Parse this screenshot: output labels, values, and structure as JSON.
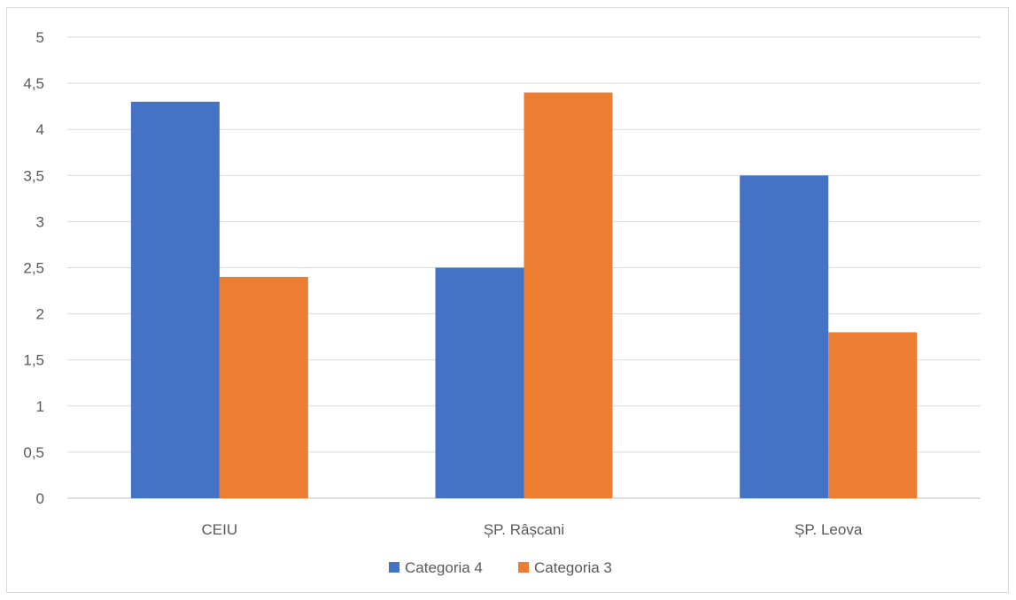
{
  "chart_data": {
    "type": "bar",
    "categories": [
      "CEIU",
      "ȘP. Râșcani",
      "ȘP. Leova"
    ],
    "series": [
      {
        "name": "Categoria 4",
        "values": [
          4.3,
          2.5,
          3.5
        ],
        "color": "#4472c4"
      },
      {
        "name": "Categoria 3",
        "values": [
          2.4,
          4.4,
          1.8
        ],
        "color": "#ed7d31"
      }
    ],
    "ylim": [
      0,
      5
    ],
    "y_ticks": [
      "0",
      "0,5",
      "1",
      "1,5",
      "2",
      "2,5",
      "3",
      "3,5",
      "4",
      "4,5",
      "5"
    ],
    "grid": true,
    "legend_position": "bottom",
    "title": "",
    "xlabel": "",
    "ylabel": ""
  }
}
